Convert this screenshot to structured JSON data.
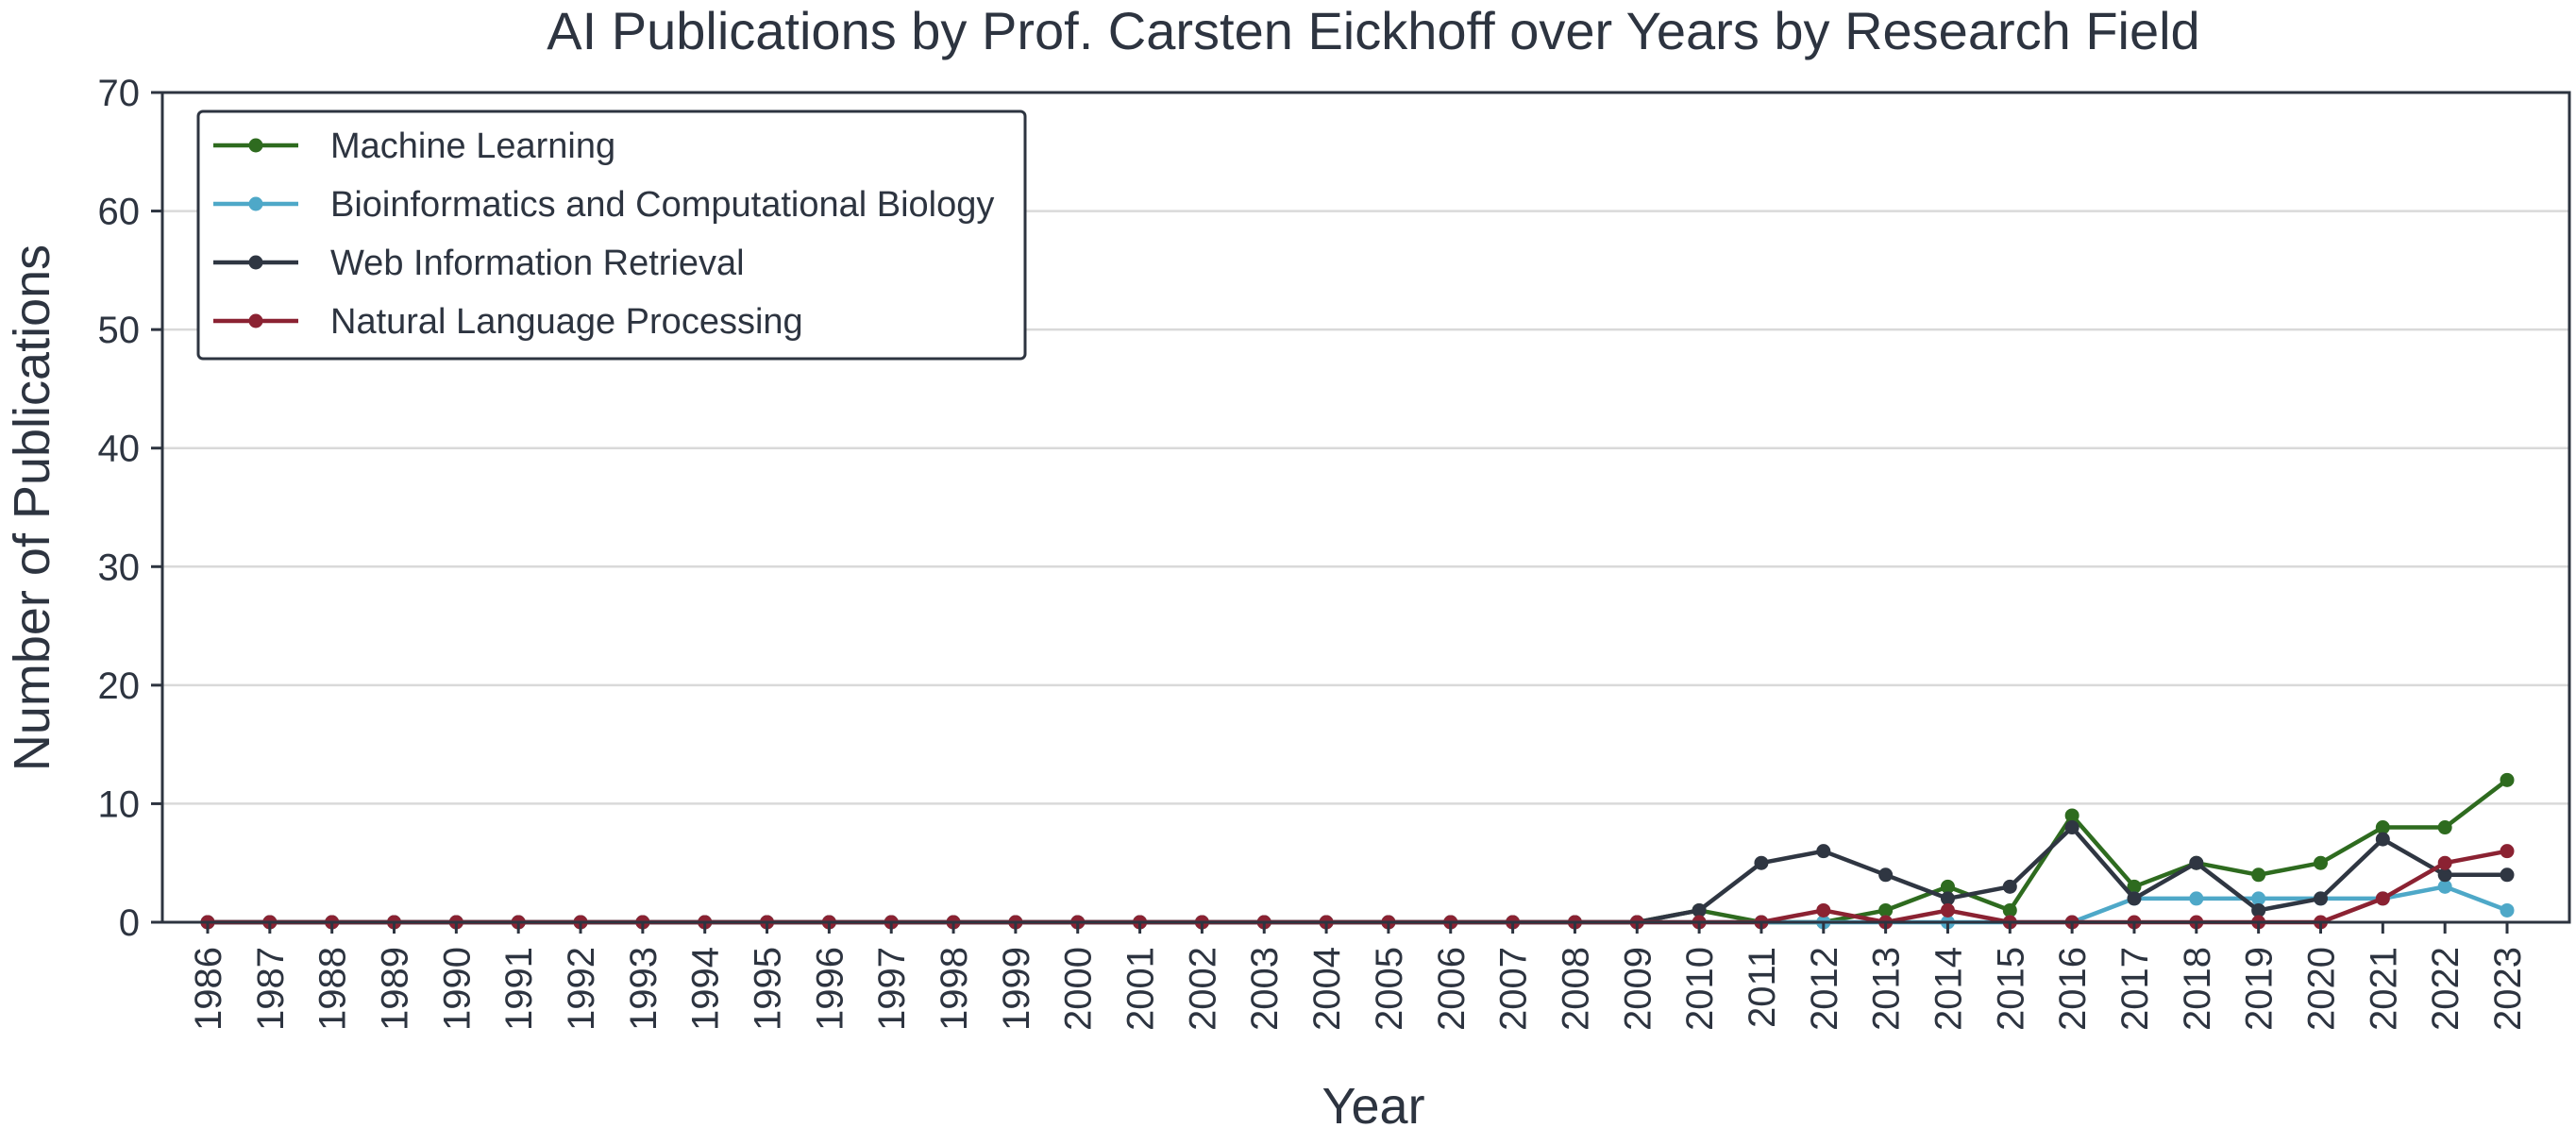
{
  "chart_data": {
    "type": "line",
    "title": "AI Publications by Prof. Carsten Eickhoff over Years by Research Field",
    "xlabel": "Year",
    "ylabel": "Number of Publications",
    "ylim": [
      0,
      70
    ],
    "yticks": [
      0,
      10,
      20,
      30,
      40,
      50,
      60,
      70
    ],
    "grid": "horizontal",
    "legend_position": "top-left",
    "x": [
      "1986",
      "1987",
      "1988",
      "1989",
      "1990",
      "1991",
      "1992",
      "1993",
      "1994",
      "1995",
      "1996",
      "1997",
      "1998",
      "1999",
      "2000",
      "2001",
      "2002",
      "2003",
      "2004",
      "2005",
      "2006",
      "2007",
      "2008",
      "2009",
      "2010",
      "2011",
      "2012",
      "2013",
      "2014",
      "2015",
      "2016",
      "2017",
      "2018",
      "2019",
      "2020",
      "2021",
      "2022",
      "2023"
    ],
    "series": [
      {
        "name": "Machine Learning",
        "color": "#2e6b1f",
        "values": [
          0,
          0,
          0,
          0,
          0,
          0,
          0,
          0,
          0,
          0,
          0,
          0,
          0,
          0,
          0,
          0,
          0,
          0,
          0,
          0,
          0,
          0,
          0,
          0,
          1,
          0,
          0,
          1,
          3,
          1,
          9,
          3,
          5,
          4,
          5,
          8,
          8,
          12
        ]
      },
      {
        "name": "Bioinformatics and Computational Biology",
        "color": "#4ea8c8",
        "values": [
          0,
          0,
          0,
          0,
          0,
          0,
          0,
          0,
          0,
          0,
          0,
          0,
          0,
          0,
          0,
          0,
          0,
          0,
          0,
          0,
          0,
          0,
          0,
          0,
          0,
          0,
          0,
          0,
          0,
          0,
          0,
          2,
          2,
          2,
          2,
          2,
          3,
          1
        ]
      },
      {
        "name": "Web Information Retrieval",
        "color": "#2f3642",
        "values": [
          0,
          0,
          0,
          0,
          0,
          0,
          0,
          0,
          0,
          0,
          0,
          0,
          0,
          0,
          0,
          0,
          0,
          0,
          0,
          0,
          0,
          0,
          0,
          0,
          1,
          5,
          6,
          4,
          2,
          3,
          8,
          2,
          5,
          1,
          2,
          7,
          4,
          4
        ]
      },
      {
        "name": "Natural Language Processing",
        "color": "#8b2232",
        "values": [
          0,
          0,
          0,
          0,
          0,
          0,
          0,
          0,
          0,
          0,
          0,
          0,
          0,
          0,
          0,
          0,
          0,
          0,
          0,
          0,
          0,
          0,
          0,
          0,
          0,
          0,
          1,
          0,
          1,
          0,
          0,
          0,
          0,
          0,
          0,
          2,
          5,
          6
        ]
      }
    ]
  }
}
